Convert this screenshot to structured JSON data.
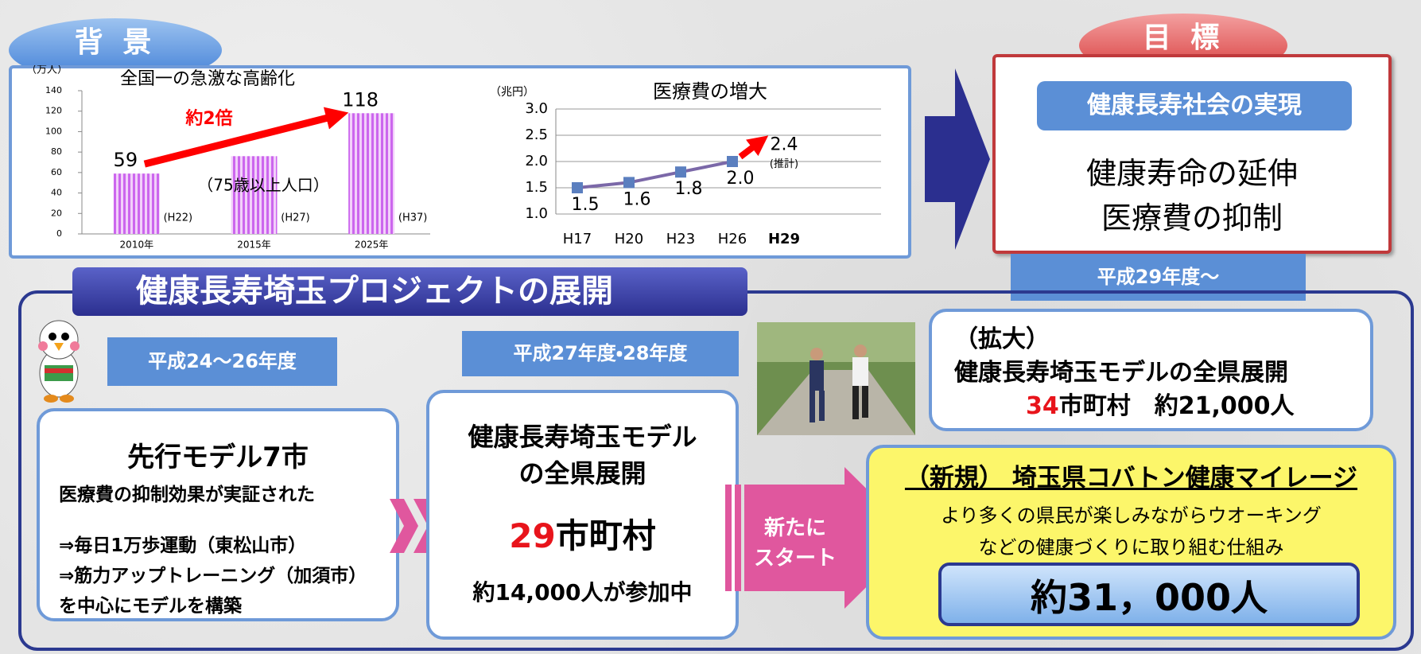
{
  "background_label": "背 景",
  "goal": {
    "label": "目 標",
    "headline": "健康長寿社会の実現",
    "items": [
      "健康寿命の延伸",
      "医療費の抑制"
    ],
    "period": "平成29年度～"
  },
  "chart_data": [
    {
      "type": "bar",
      "title": "全国一の急激な高齢化",
      "y_label": "（万人）",
      "categories": [
        "2010年",
        "2015年",
        "2025年"
      ],
      "values": [
        59,
        76,
        118
      ],
      "value_labels": [
        "59",
        null,
        "118"
      ],
      "bar_notes": [
        "(H22)",
        "(H27)",
        "(H37)"
      ],
      "annotations": [
        "約2倍",
        "（75歳以上人口）"
      ],
      "color": "#cc66ee",
      "ylim": [
        0,
        140
      ],
      "yticks": [
        0,
        20,
        40,
        60,
        80,
        100,
        120,
        140
      ]
    },
    {
      "type": "line",
      "title": "医療費の増大",
      "y_label": "（兆円）",
      "categories": [
        "H17",
        "H20",
        "H23",
        "H26",
        "H29"
      ],
      "values": [
        1.5,
        1.6,
        1.8,
        2,
        null
      ],
      "value_labels": [
        "1.5",
        "1.6",
        "1.8",
        "2.0",
        null
      ],
      "projected_values": [
        null,
        null,
        null,
        null,
        2.4
      ],
      "projection_note": "(推計)",
      "color": "#7b68a8",
      "marker_color": "#5b7fbf",
      "projection_color": "#ff0000",
      "ylim": [
        1,
        3
      ],
      "yticks": [
        {
          "value": 1,
          "label": "1.0"
        },
        {
          "value": 1.5,
          "label": "1.5"
        },
        {
          "value": 2,
          "label": "2.0"
        },
        {
          "value": 2.5,
          "label": "2.5"
        },
        {
          "value": 3,
          "label": "3.0"
        }
      ],
      "grid": true
    }
  ],
  "project": {
    "title": "健康長寿埼玉プロジェクトの展開",
    "phase1": {
      "period": "平成24～26年度",
      "title": "先行モデル7市",
      "lines": [
        "医療費の抑制効果が実証された",
        "⇒毎日1万歩運動（東松山市）",
        "⇒筋力アップトレーニング（加須市）",
        "を中心にモデルを構築"
      ]
    },
    "phase2": {
      "period": "平成27年度・28年度",
      "title_lines": [
        "健康長寿埼玉モデル",
        "の全県展開"
      ],
      "count": "29",
      "count_unit": "市町村",
      "participants": "約14,000人が参加中"
    },
    "start": [
      "新たに",
      "スタート"
    ],
    "phase3": {
      "label": "（拡大）",
      "title": "健康長寿埼玉モデルの全県展開",
      "count": "34",
      "detail": "市町村　約21,000人"
    },
    "mileage": {
      "title": "（新規） 埼玉県コバトン健康マイレージ",
      "lines": [
        "より多くの県民が楽しみながらウオーキング",
        "などの健康づくりに取り組む仕組み"
      ],
      "participants": "約31，000人"
    }
  }
}
